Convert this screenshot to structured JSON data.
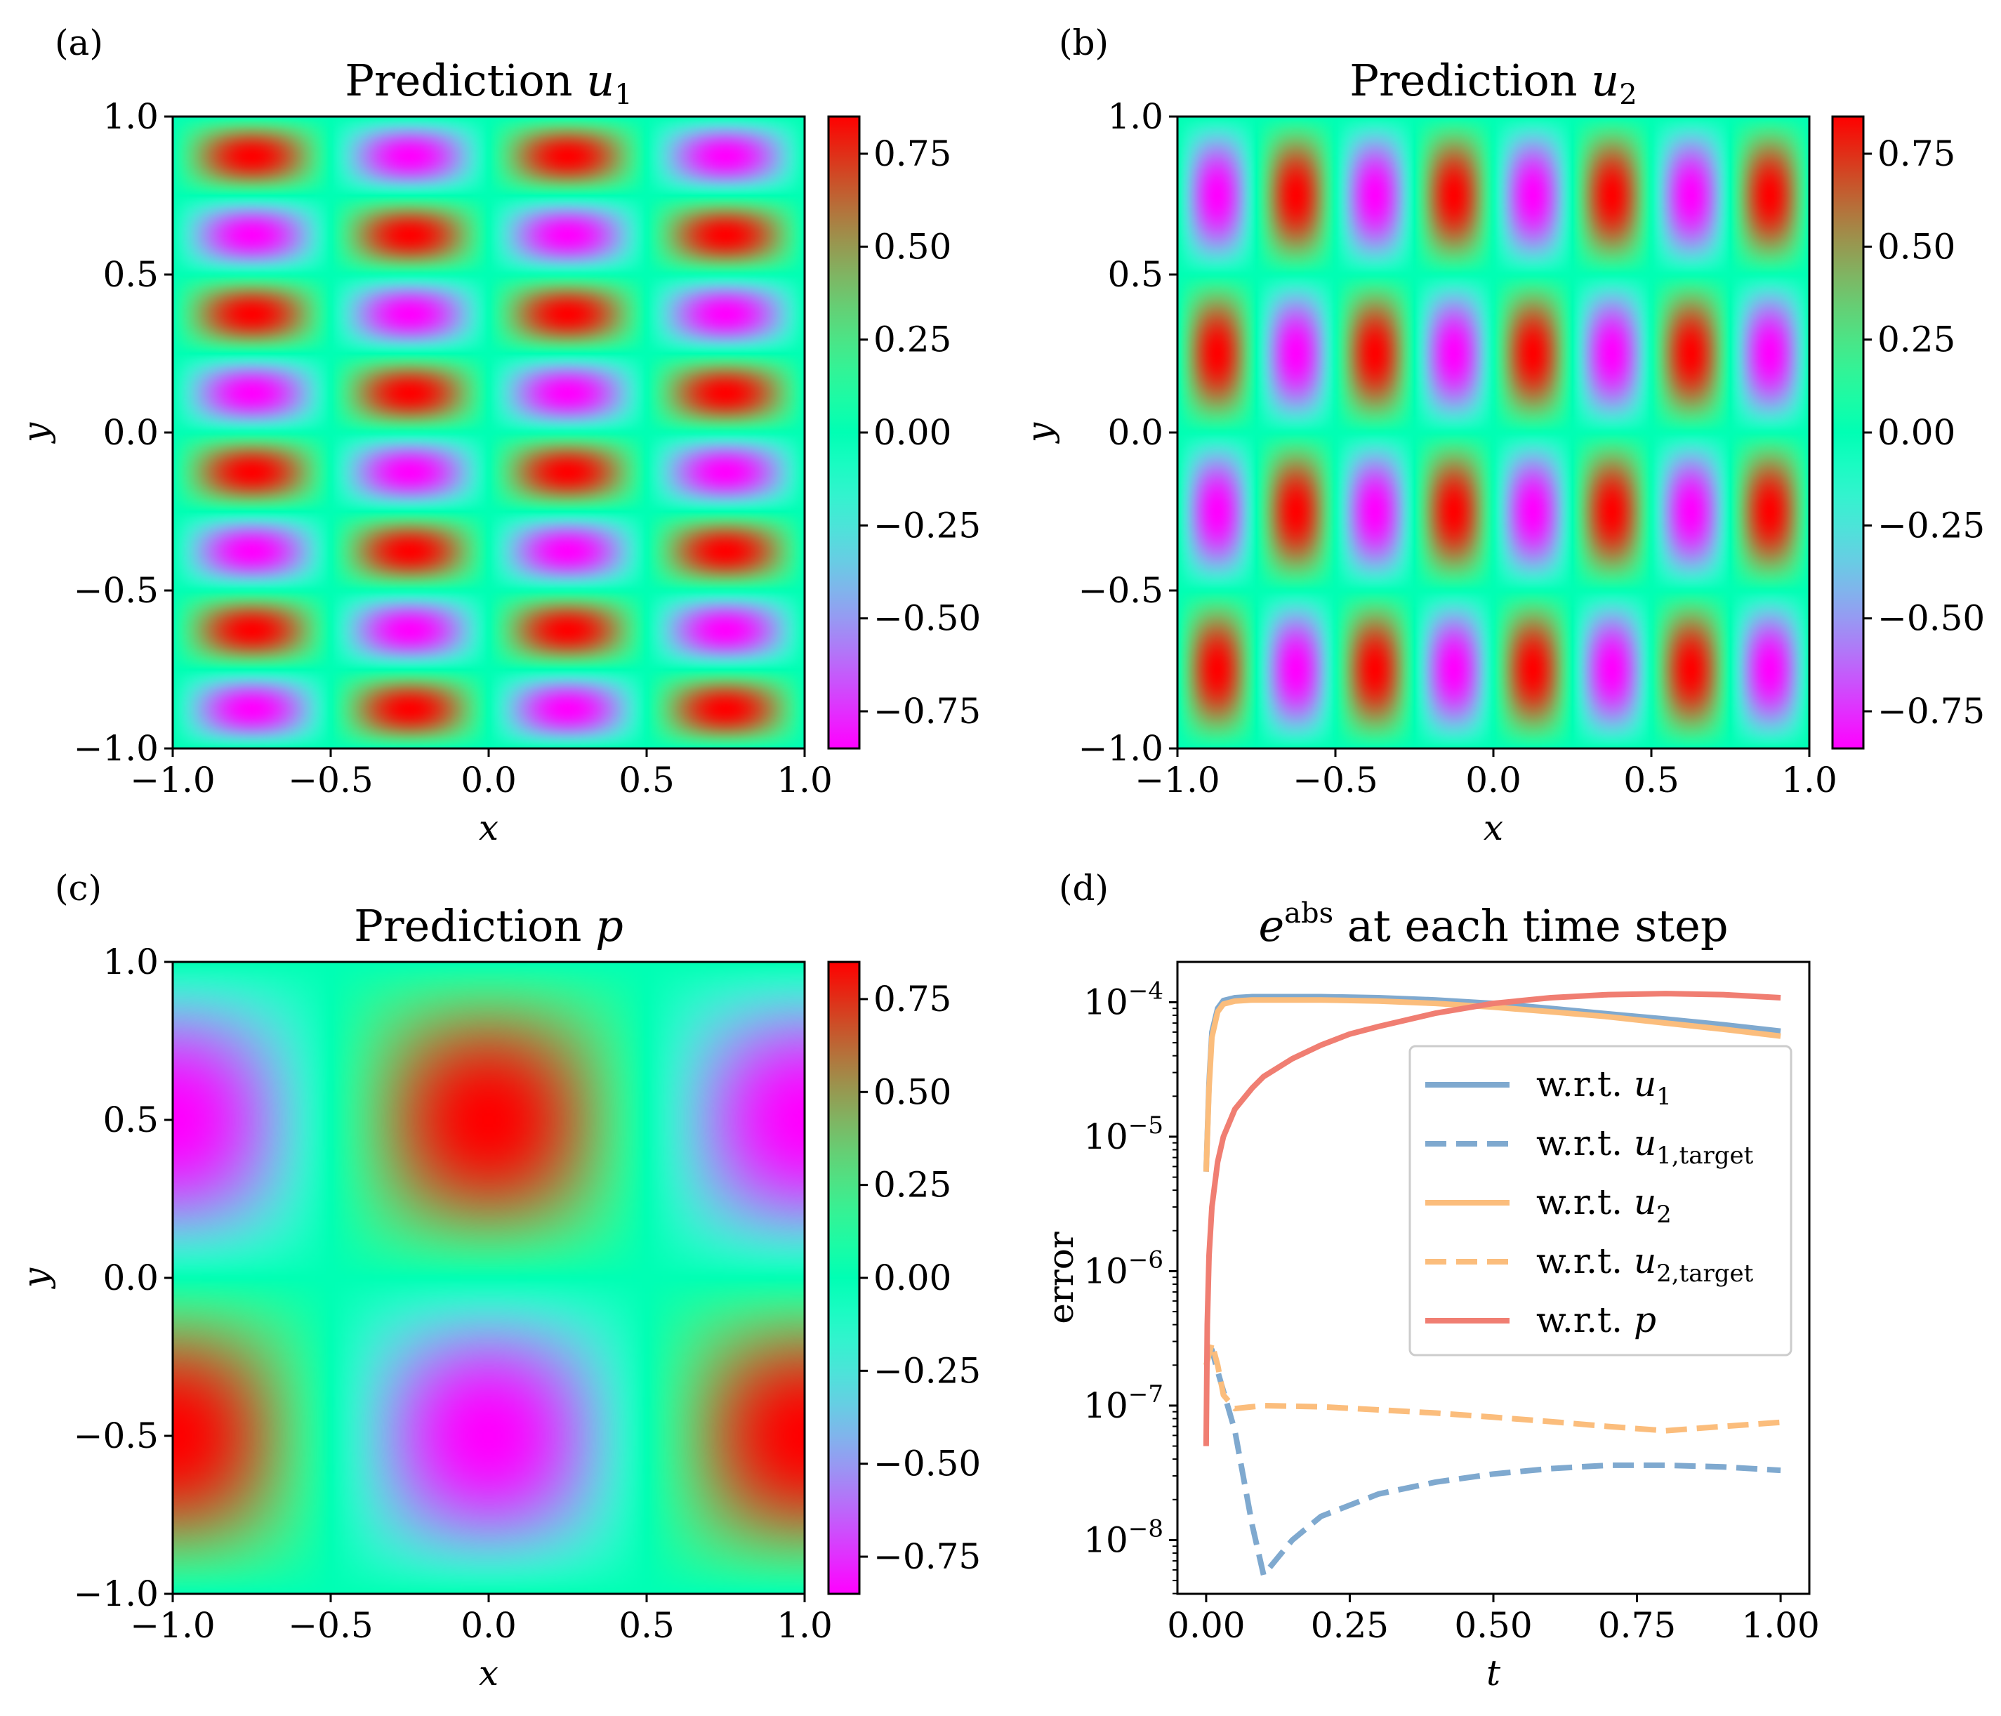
{
  "chart_data": [
    {
      "type": "heatmap",
      "panel_label": "(a)",
      "title_prefix": "Prediction ",
      "title_var": "u",
      "title_sub": "1",
      "xlabel": "x",
      "ylabel": "y",
      "xlim": [
        -1,
        1
      ],
      "ylim": [
        -1,
        1
      ],
      "xticks": [
        "−1.0",
        "−0.5",
        "0.0",
        "0.5",
        "1.0"
      ],
      "yticks": [
        "−1.0",
        "−0.5",
        "0.0",
        "0.5",
        "1.0"
      ],
      "field": "sin(2*pi*x)*sin(4*pi*y)*-0.85",
      "colorbar": {
        "range": [
          -0.85,
          0.85
        ],
        "ticks": [
          "−0.75",
          "−0.50",
          "−0.25",
          "0.00",
          "0.25",
          "0.50",
          "0.75"
        ],
        "tick_values": [
          -0.75,
          -0.5,
          -0.25,
          0,
          0.25,
          0.5,
          0.75
        ]
      }
    },
    {
      "type": "heatmap",
      "panel_label": "(b)",
      "title_prefix": "Prediction ",
      "title_var": "u",
      "title_sub": "2",
      "xlabel": "x",
      "ylabel": "y",
      "xlim": [
        -1,
        1
      ],
      "ylim": [
        -1,
        1
      ],
      "xticks": [
        "−1.0",
        "−0.5",
        "0.0",
        "0.5",
        "1.0"
      ],
      "yticks": [
        "−1.0",
        "−0.5",
        "0.0",
        "0.5",
        "1.0"
      ],
      "field": "sin(4*pi*x)*sin(2*pi*y)*0.85",
      "colorbar": {
        "range": [
          -0.85,
          0.85
        ],
        "ticks": [
          "−0.75",
          "−0.50",
          "−0.25",
          "0.00",
          "0.25",
          "0.50",
          "0.75"
        ],
        "tick_values": [
          -0.75,
          -0.5,
          -0.25,
          0,
          0.25,
          0.5,
          0.75
        ]
      }
    },
    {
      "type": "heatmap",
      "panel_label": "(c)",
      "title_prefix": "Prediction ",
      "title_var": "p",
      "title_sub": "",
      "xlabel": "x",
      "ylabel": "y",
      "xlim": [
        -1,
        1
      ],
      "ylim": [
        -1,
        1
      ],
      "xticks": [
        "−1.0",
        "−0.5",
        "0.0",
        "0.5",
        "1.0"
      ],
      "yticks": [
        "−1.0",
        "−0.5",
        "0.0",
        "0.5",
        "1.0"
      ],
      "field": "cos(pi*x)*sin(pi*y)*0.85",
      "colorbar": {
        "range": [
          -0.85,
          0.85
        ],
        "ticks": [
          "−0.75",
          "−0.50",
          "−0.25",
          "0.00",
          "0.25",
          "0.50",
          "0.75"
        ],
        "tick_values": [
          -0.75,
          -0.5,
          -0.25,
          0,
          0.25,
          0.5,
          0.75
        ]
      }
    },
    {
      "type": "line",
      "panel_label": "(d)",
      "title_var": "e",
      "title_sup": "abs",
      "title_rest": " at each time step",
      "xlabel": "t",
      "ylabel": "error",
      "yscale": "log",
      "xlim": [
        -0.05,
        1.05
      ],
      "ylim_log10": [
        -8.4,
        -3.7
      ],
      "xticks": [
        0,
        0.25,
        0.5,
        0.75,
        1.0
      ],
      "xtick_labels": [
        "0.00",
        "0.25",
        "0.50",
        "0.75",
        "1.00"
      ],
      "yticks_log10": [
        -8,
        -7,
        -6,
        -5,
        -4
      ],
      "ytick_base": "10",
      "ytick_exps": [
        "−8",
        "−7",
        "−6",
        "−5",
        "−4"
      ],
      "legend_position": "center-right",
      "series": [
        {
          "name_prefix": "w.r.t. ",
          "name_var": "u",
          "name_sub": "1",
          "color": "#7fa9cf",
          "style": "solid",
          "x": [
            0,
            0.005,
            0.01,
            0.02,
            0.03,
            0.05,
            0.08,
            0.1,
            0.15,
            0.2,
            0.3,
            0.4,
            0.5,
            0.6,
            0.7,
            0.8,
            0.9,
            1.0
          ],
          "y": [
            5.5e-06,
            2.5e-05,
            6e-05,
            9e-05,
            0.000103,
            0.000108,
            0.00011,
            0.00011,
            0.00011,
            0.00011,
            0.000108,
            0.000104,
            9.8e-05,
            9e-05,
            8.2e-05,
            7.5e-05,
            6.8e-05,
            6.1e-05
          ]
        },
        {
          "name_prefix": "w.r.t. ",
          "name_var": "u",
          "name_sub": "1,target",
          "color": "#7fa9cf",
          "style": "dashed",
          "x": [
            0,
            0.01,
            0.02,
            0.05,
            0.08,
            0.1,
            0.12,
            0.15,
            0.2,
            0.3,
            0.4,
            0.5,
            0.6,
            0.7,
            0.8,
            0.9,
            1.0
          ],
          "y": [
            2.5e-07,
            2.6e-07,
            1.8e-07,
            6.5e-08,
            1.3e-08,
            5.5e-09,
            7e-09,
            1e-08,
            1.5e-08,
            2.2e-08,
            2.7e-08,
            3.1e-08,
            3.4e-08,
            3.6e-08,
            3.6e-08,
            3.5e-08,
            3.3e-08
          ]
        },
        {
          "name_prefix": "w.r.t. ",
          "name_var": "u",
          "name_sub": "2",
          "color": "#fbbd7c",
          "style": "solid",
          "x": [
            0,
            0.005,
            0.01,
            0.02,
            0.03,
            0.05,
            0.08,
            0.1,
            0.15,
            0.2,
            0.3,
            0.4,
            0.5,
            0.6,
            0.7,
            0.8,
            0.9,
            1.0
          ],
          "y": [
            5.5e-06,
            2.3e-05,
            5.5e-05,
            8.5e-05,
            9.7e-05,
            0.000102,
            0.000104,
            0.000104,
            0.000104,
            0.000104,
            0.000102,
            9.8e-05,
            9.2e-05,
            8.5e-05,
            7.8e-05,
            7e-05,
            6.3e-05,
            5.6e-05
          ]
        },
        {
          "name_prefix": "w.r.t. ",
          "name_var": "u",
          "name_sub": "2,target",
          "color": "#fbbd7c",
          "style": "dashed",
          "x": [
            0,
            0.01,
            0.02,
            0.03,
            0.05,
            0.1,
            0.2,
            0.3,
            0.4,
            0.5,
            0.6,
            0.7,
            0.8,
            0.9,
            1.0
          ],
          "y": [
            2e-07,
            2.9e-07,
            2e-07,
            1.2e-07,
            9.5e-08,
            1e-07,
            9.8e-08,
            9.3e-08,
            8.8e-08,
            8.2e-08,
            7.6e-08,
            7e-08,
            6.5e-08,
            7e-08,
            7.5e-08
          ]
        },
        {
          "name_prefix": "w.r.t. ",
          "name_var": "p",
          "name_sub": "",
          "color": "#f07e72",
          "style": "solid",
          "x": [
            0,
            0.002,
            0.005,
            0.01,
            0.02,
            0.03,
            0.05,
            0.08,
            0.1,
            0.15,
            0.2,
            0.25,
            0.3,
            0.4,
            0.5,
            0.6,
            0.7,
            0.8,
            0.9,
            1.0
          ],
          "y": [
            5e-08,
            4e-07,
            1.3e-06,
            3e-06,
            6.5e-06,
            1e-05,
            1.6e-05,
            2.3e-05,
            2.8e-05,
            3.8e-05,
            4.8e-05,
            5.8e-05,
            6.6e-05,
            8.3e-05,
            9.8e-05,
            0.000108,
            0.000114,
            0.000116,
            0.000114,
            0.000108
          ]
        }
      ]
    }
  ]
}
